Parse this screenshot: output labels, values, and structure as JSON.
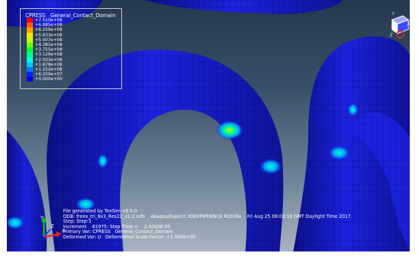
{
  "legend": {
    "title": "CPRESS   General_Contact_Domain",
    "colors": [
      "#ff0000",
      "#ff5a00",
      "#ffa000",
      "#ffe600",
      "#c8ff00",
      "#6eff00",
      "#00ff1e",
      "#00ff8c",
      "#00ffe6",
      "#00c8ff",
      "#0078ff",
      "#0028ff",
      "#0000e6"
    ],
    "values": [
      "+7.510e+08",
      "+6.885e+08",
      "+6.259e+08",
      "+5.633e+08",
      "+5.007e+08",
      "+4.381e+08",
      "+3.755e+08",
      "+3.129e+08",
      "+2.503e+08",
      "+1.878e+08",
      "+1.252e+08",
      "+6.259e+07",
      "+0.000e+00"
    ]
  },
  "info": {
    "line1": "File generated by TexGen v3.9.0",
    "line2": "ODB: freex_tri_8x3_Res22_x1.2.odb    Abaqus/Explicit 3DEXPERIENCE R2016x    Fri Aug 25 08:03:16 GMT Daylight Time 2017",
    "line3": "Step: Step-1",
    "line4": "Increment    61975: Step Time =    2.5000E-05",
    "line5": "Primary Var: CPRESS   General_Contact_Domain",
    "line6": "Deformed Var: U   Deformation Scale Factor: +1.000e+00"
  },
  "triad": {
    "x_label": "X",
    "y_label": "Y",
    "z_label": "Z"
  },
  "view_cube": {
    "y_label": "Y",
    "x_label": "X",
    "z_label": "Z"
  },
  "colors": {
    "mesh_blue": "#1a1ee0",
    "mesh_line": "#0a0a70",
    "hot_spot": "#3cf0a0"
  }
}
